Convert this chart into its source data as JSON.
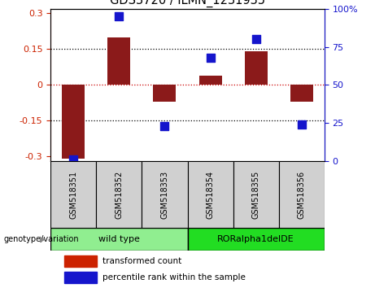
{
  "title": "GDS3720 / ILMN_1231935",
  "samples": [
    "GSM518351",
    "GSM518352",
    "GSM518353",
    "GSM518354",
    "GSM518355",
    "GSM518356"
  ],
  "transformed_count": [
    -0.31,
    0.2,
    -0.07,
    0.04,
    0.14,
    -0.07
  ],
  "percentile_rank": [
    1.0,
    95.0,
    23.0,
    68.0,
    80.0,
    24.0
  ],
  "bar_color": "#8B1A1A",
  "dot_color": "#1515CC",
  "ylim_left": [
    -0.32,
    0.32
  ],
  "ylim_right": [
    0,
    100
  ],
  "yticks_left": [
    -0.3,
    -0.15,
    0,
    0.15,
    0.3
  ],
  "ytick_labels_left": [
    "-0.3",
    "-0.15",
    "0",
    "0.15",
    "0.3"
  ],
  "yticks_right": [
    0,
    25,
    50,
    75,
    100
  ],
  "ytick_labels_right": [
    "0",
    "25",
    "50",
    "75",
    "100%"
  ],
  "hlines": [
    -0.15,
    0,
    0.15
  ],
  "hline_colors": [
    "black",
    "#CC0000",
    "black"
  ],
  "hline_styles": [
    "dotted",
    "dotted",
    "dotted"
  ],
  "groups": [
    {
      "label": "wild type",
      "indices": [
        0,
        1,
        2
      ],
      "color": "#90EE90"
    },
    {
      "label": "RORalpha1delDE",
      "indices": [
        3,
        4,
        5
      ],
      "color": "#22DD22"
    }
  ],
  "group_label": "genotype/variation",
  "legend_entries": [
    "transformed count",
    "percentile rank within the sample"
  ],
  "legend_colors": [
    "#CC2200",
    "#1515CC"
  ],
  "bar_width": 0.5,
  "dot_size": 50,
  "sample_box_color": "#D0D0D0",
  "background_color": "#ffffff",
  "title_fontsize": 10.5,
  "left_color": "#CC2200",
  "right_color": "#1515CC"
}
